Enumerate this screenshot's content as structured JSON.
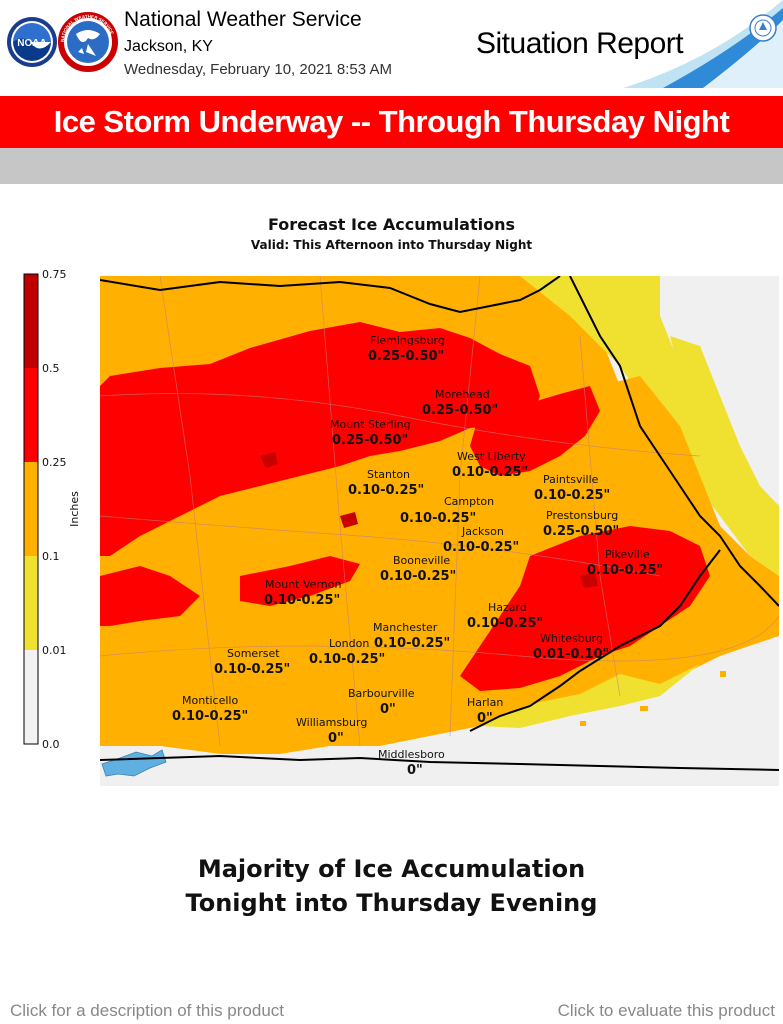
{
  "header": {
    "office": "National Weather Service",
    "location": "Jackson, KY",
    "issued": "Wednesday, February 10, 2021   8:53 AM",
    "product": "Situation Report",
    "logo_noaa": "NOAA",
    "logo_nws": "NATIONAL WEATHER SERVICE"
  },
  "banner": {
    "headline": "Ice Storm Underway -- Through Thursday Night"
  },
  "map": {
    "title": "Forecast Ice Accumulations",
    "subtitle": "Valid: This Afternoon into Thursday Night",
    "legend": {
      "unit_label": "Inches",
      "ticks": [
        "0.75",
        "0.5",
        "0.25",
        "0.1",
        "0.01",
        "0.0"
      ],
      "colors": [
        "#c00000",
        "#ff0000",
        "#ffb000",
        "#f0e030",
        "#f0f0f0"
      ]
    },
    "places": [
      {
        "name": "Flemingsburg",
        "amount": "0.25-0.50\""
      },
      {
        "name": "Morehead",
        "amount": "0.25-0.50\""
      },
      {
        "name": "Mount Sterling",
        "amount": "0.25-0.50\""
      },
      {
        "name": "West Liberty",
        "amount": "0.10-0.25\""
      },
      {
        "name": "Stanton",
        "amount": "0.10-0.25\""
      },
      {
        "name": "Paintsville",
        "amount": "0.10-0.25\""
      },
      {
        "name": "Campton",
        "amount": "0.10-0.25\""
      },
      {
        "name": "Prestonsburg",
        "amount": "0.25-0.50\""
      },
      {
        "name": "Jackson",
        "amount": "0.10-0.25\""
      },
      {
        "name": "Booneville",
        "amount": "0.10-0.25\""
      },
      {
        "name": "Pikeville",
        "amount": "0.10-0.25\""
      },
      {
        "name": "Mount Vernon",
        "amount": "0.10-0.25\""
      },
      {
        "name": "Hazard",
        "amount": "0.10-0.25\""
      },
      {
        "name": "Manchester",
        "amount": "0.10-0.25\""
      },
      {
        "name": "Whitesburg",
        "amount": "0.01-0.10\""
      },
      {
        "name": "Somerset",
        "amount": "0.10-0.25\""
      },
      {
        "name": "London",
        "amount": "0.10-0.25\""
      },
      {
        "name": "Barbourville",
        "amount": "0\""
      },
      {
        "name": "Harlan",
        "amount": "0\""
      },
      {
        "name": "Monticello",
        "amount": "0.10-0.25\""
      },
      {
        "name": "Williamsburg",
        "amount": "0\""
      },
      {
        "name": "Middlesboro",
        "amount": "0\""
      }
    ]
  },
  "caption": {
    "line1": "Majority of Ice Accumulation",
    "line2": "Tonight into Thursday Evening"
  },
  "footer": {
    "description_link": "Click for a description of this product",
    "evaluate_link": "Click to evaluate this product"
  }
}
